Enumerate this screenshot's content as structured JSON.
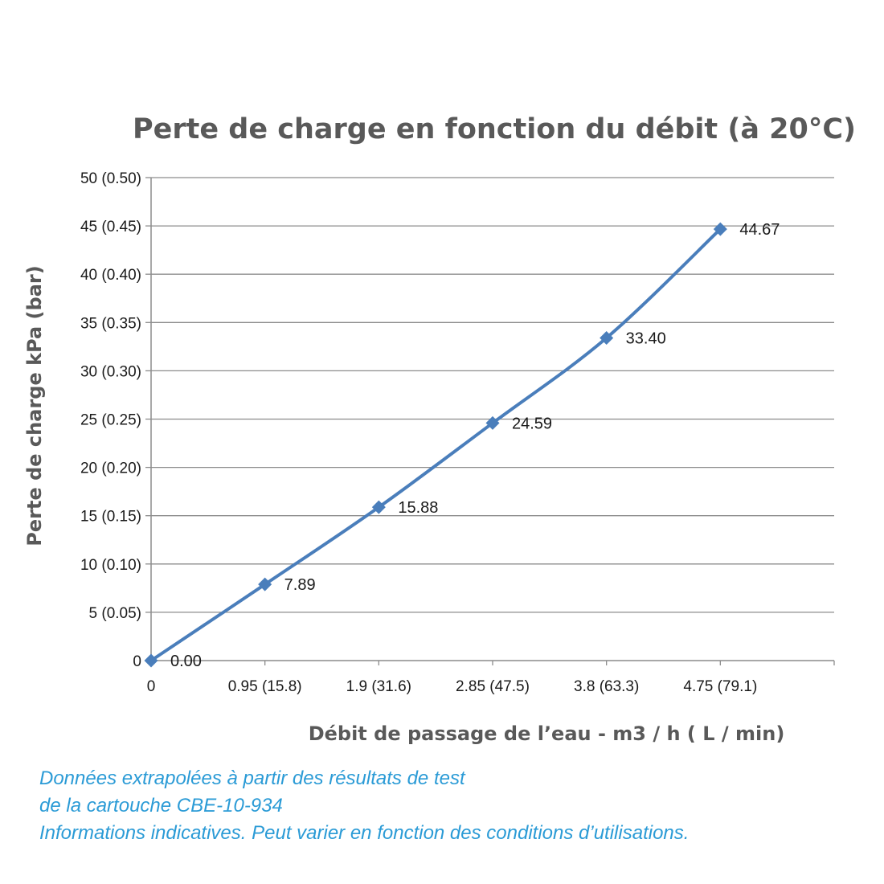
{
  "chart_data": {
    "type": "line",
    "title": "Perte de charge en fonction du débit (à 20°C)",
    "xlabel": "Débit de passage de l’eau - m3 / h ( L / min)",
    "ylabel": "Perte de charge kPa (bar)",
    "x": [
      0,
      0.95,
      1.9,
      2.85,
      3.8,
      4.75
    ],
    "x_tick_labels": [
      "0",
      "0.95 (15.8)",
      "1.9 (31.6)",
      "2.85 (47.5)",
      "3.8 (63.3)",
      "4.75 (79.1)"
    ],
    "series": [
      {
        "values": [
          0,
          7.89,
          15.88,
          24.59,
          33.4,
          44.67
        ],
        "data_labels": [
          "0.00",
          "7.89",
          "15.88",
          "24.59",
          "33.40",
          "44.67"
        ],
        "color": "#4a7ebb",
        "marker": "diamond"
      }
    ],
    "y_ticks": [
      0,
      5,
      10,
      15,
      20,
      25,
      30,
      35,
      40,
      45,
      50
    ],
    "y_tick_labels": [
      "0",
      "5 (0.05)",
      "10 (0.10)",
      "15 (0.15)",
      "20 (0.20)",
      "25 (0.25)",
      "30 (0.30)",
      "35 (0.35)",
      "40 (0.40)",
      "45 (0.45)",
      "50 (0.50)"
    ],
    "ylim": [
      0,
      50
    ],
    "xlim": [
      0,
      6
    ],
    "grid": true,
    "legend": "none",
    "colors": {
      "line": "#4a7ebb",
      "grid": "#8c8c8c",
      "text": "#595959"
    }
  },
  "notes": [
    "Données extrapolées à partir des résultats de test",
    "de la cartouche CBE-10-934",
    "Informations indicatives. Peut varier en fonction des conditions d’utilisations."
  ],
  "notes_color": "#2b9bd6"
}
